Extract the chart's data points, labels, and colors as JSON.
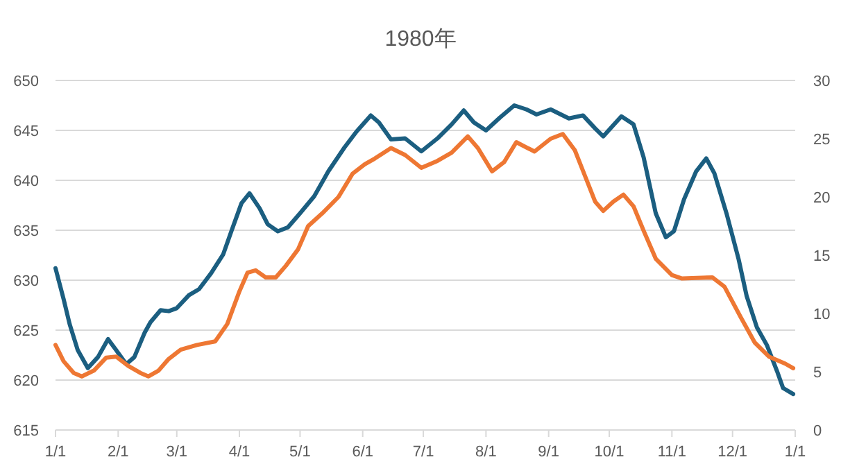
{
  "chart_data": {
    "type": "line",
    "title": "1980年",
    "xlim": [
      "1980-01-01",
      "1981-01-01"
    ],
    "xticks": [
      {
        "value": "1980-01-01",
        "label": "1/1"
      },
      {
        "value": "1980-02-01",
        "label": "2/1"
      },
      {
        "value": "1980-03-01",
        "label": "3/1"
      },
      {
        "value": "1980-04-01",
        "label": "4/1"
      },
      {
        "value": "1980-05-01",
        "label": "5/1"
      },
      {
        "value": "1980-06-01",
        "label": "6/1"
      },
      {
        "value": "1980-07-01",
        "label": "7/1"
      },
      {
        "value": "1980-08-01",
        "label": "8/1"
      },
      {
        "value": "1980-09-01",
        "label": "9/1"
      },
      {
        "value": "1980-10-01",
        "label": "10/1"
      },
      {
        "value": "1980-11-01",
        "label": "11/1"
      },
      {
        "value": "1980-12-01",
        "label": "12/1"
      },
      {
        "value": "1981-01-01",
        "label": "1/1"
      }
    ],
    "ylim": [
      615,
      650
    ],
    "yticks": [
      615,
      620,
      625,
      630,
      635,
      640,
      645,
      650
    ],
    "y2lim": [
      0,
      30
    ],
    "y2ticks": [
      0,
      5,
      10,
      15,
      20,
      25,
      30
    ],
    "grid": "y",
    "marker": "none",
    "line_style": "solid",
    "series": [
      {
        "color": "#1b5e80",
        "x": [
          "1980-01-01",
          "1980-01-05",
          "1980-01-08",
          "1980-01-12",
          "1980-01-17",
          "1980-01-22",
          "1980-01-27",
          "1980-01-31",
          "1980-02-05",
          "1980-02-09",
          "1980-02-14",
          "1980-02-17",
          "1980-02-22",
          "1980-02-26",
          "1980-03-01",
          "1980-03-07",
          "1980-03-12",
          "1980-03-18",
          "1980-03-24",
          "1980-03-28",
          "1980-04-02",
          "1980-04-06",
          "1980-04-11",
          "1980-04-15",
          "1980-04-20",
          "1980-04-25",
          "1980-05-01",
          "1980-05-08",
          "1980-05-15",
          "1980-05-23",
          "1980-05-29",
          "1980-06-05",
          "1980-06-09",
          "1980-06-15",
          "1980-06-22",
          "1980-06-30",
          "1980-07-08",
          "1980-07-15",
          "1980-07-21",
          "1980-07-26",
          "1980-08-01",
          "1980-08-08",
          "1980-08-15",
          "1980-08-21",
          "1980-08-26",
          "1980-09-02",
          "1980-09-11",
          "1980-09-18",
          "1980-09-24",
          "1980-09-28",
          "1980-10-02",
          "1980-10-07",
          "1980-10-13",
          "1980-10-18",
          "1980-10-24",
          "1980-10-29",
          "1980-11-02",
          "1980-11-07",
          "1980-11-13",
          "1980-11-18",
          "1980-11-22",
          "1980-11-28",
          "1980-12-04",
          "1980-12-08",
          "1980-12-13",
          "1980-12-18",
          "1980-12-23",
          "1980-12-26",
          "1980-12-31"
        ],
        "values": [
          631.2,
          628.1,
          625.6,
          623.0,
          621.2,
          622.3,
          624.1,
          623.0,
          621.6,
          622.3,
          624.7,
          625.8,
          627.0,
          626.9,
          627.2,
          628.5,
          629.1,
          630.7,
          632.6,
          634.9,
          637.7,
          638.7,
          637.2,
          635.6,
          634.9,
          635.3,
          636.7,
          638.4,
          640.9,
          643.3,
          644.9,
          646.5,
          645.8,
          644.1,
          644.2,
          642.9,
          644.2,
          645.6,
          647.0,
          645.8,
          645.0,
          646.3,
          647.5,
          647.1,
          646.6,
          647.1,
          646.2,
          646.5,
          645.2,
          644.4,
          645.3,
          646.4,
          645.6,
          642.3,
          636.7,
          634.3,
          634.9,
          638.1,
          640.9,
          642.2,
          640.7,
          636.7,
          632.1,
          628.4,
          625.3,
          623.5,
          620.9,
          619.2,
          618.6
        ]
      },
      {
        "color": "#ee7733",
        "axis": "y2",
        "x": [
          "1980-01-01",
          "1980-01-05",
          "1980-01-10",
          "1980-01-14",
          "1980-01-20",
          "1980-01-26",
          "1980-01-31",
          "1980-02-06",
          "1980-02-12",
          "1980-02-16",
          "1980-02-21",
          "1980-02-26",
          "1980-03-03",
          "1980-03-11",
          "1980-03-20",
          "1980-03-26",
          "1980-04-01",
          "1980-04-05",
          "1980-04-09",
          "1980-04-14",
          "1980-04-19",
          "1980-04-24",
          "1980-04-30",
          "1980-05-05",
          "1980-05-12",
          "1980-05-20",
          "1980-05-27",
          "1980-06-02",
          "1980-06-07",
          "1980-06-15",
          "1980-06-22",
          "1980-06-30",
          "1980-07-08",
          "1980-07-15",
          "1980-07-23",
          "1980-07-28",
          "1980-08-04",
          "1980-08-10",
          "1980-08-16",
          "1980-08-25",
          "1980-09-02",
          "1980-09-08",
          "1980-09-14",
          "1980-09-19",
          "1980-09-24",
          "1980-09-28",
          "1980-10-03",
          "1980-10-08",
          "1980-10-13",
          "1980-10-18",
          "1980-10-24",
          "1980-11-01",
          "1980-11-06",
          "1980-11-21",
          "1980-11-27",
          "1980-12-05",
          "1980-12-12",
          "1980-12-19",
          "1980-12-27",
          "1980-12-31"
        ],
        "values": [
          7.3,
          5.9,
          4.9,
          4.6,
          5.1,
          6.2,
          6.3,
          5.5,
          4.9,
          4.6,
          5.1,
          6.1,
          6.9,
          7.3,
          7.6,
          9.1,
          11.9,
          13.5,
          13.7,
          13.1,
          13.1,
          14.1,
          15.5,
          17.5,
          18.6,
          20.0,
          22.0,
          22.8,
          23.3,
          24.2,
          23.6,
          22.5,
          23.1,
          23.8,
          25.2,
          24.2,
          22.2,
          23.0,
          24.7,
          23.9,
          25.0,
          25.4,
          24.0,
          21.8,
          19.6,
          18.8,
          19.6,
          20.2,
          19.2,
          17.1,
          14.7,
          13.3,
          13.0,
          13.1,
          12.3,
          9.7,
          7.5,
          6.3,
          5.7,
          5.3
        ]
      }
    ]
  }
}
